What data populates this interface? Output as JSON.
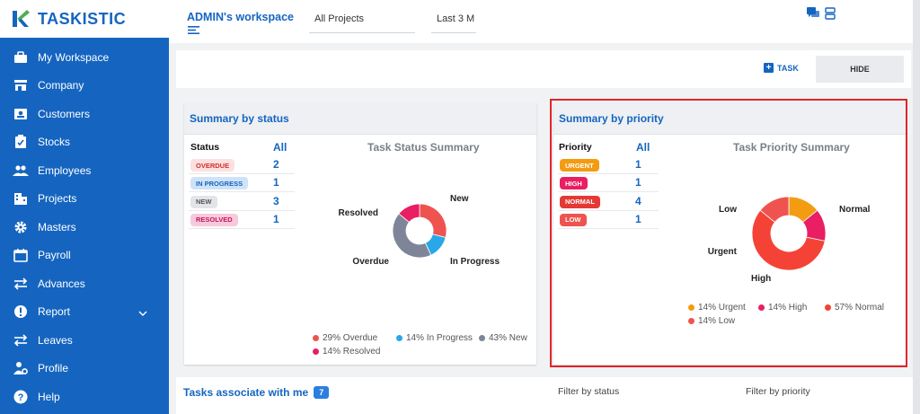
{
  "brand": {
    "name": "TASKISTIC",
    "color": "#1565c0"
  },
  "sidebar": {
    "items": [
      {
        "label": "My Workspace",
        "icon": "briefcase-icon"
      },
      {
        "label": "Company",
        "icon": "store-icon"
      },
      {
        "label": "Customers",
        "icon": "contact-card-icon"
      },
      {
        "label": "Stocks",
        "icon": "clipboard-check-icon"
      },
      {
        "label": "Employees",
        "icon": "people-icon"
      },
      {
        "label": "Projects",
        "icon": "building-icon"
      },
      {
        "label": "Masters",
        "icon": "gear-icon"
      },
      {
        "label": "Payroll",
        "icon": "calendar-icon"
      },
      {
        "label": "Advances",
        "icon": "swap-arrows-icon"
      },
      {
        "label": "Report",
        "icon": "alert-circle-icon"
      },
      {
        "label": "Leaves",
        "icon": "swap-arrows-icon"
      },
      {
        "label": "Profile",
        "icon": "user-gear-icon"
      },
      {
        "label": "Help",
        "icon": "help-circle-icon"
      }
    ]
  },
  "header": {
    "workspace_title": "ADMIN's workspace",
    "project_filter": "All Projects",
    "period_filter": "Last 3 M"
  },
  "actions": {
    "task_label": "TASK",
    "hide_label": "HIDE"
  },
  "status_summary": {
    "title": "Summary by status",
    "col_status": "Status",
    "col_all": "All",
    "rows": [
      {
        "label": "OVERDUE",
        "count": "2",
        "bg": "#fde0e0",
        "fg": "#d32f2f"
      },
      {
        "label": "IN PROGRESS",
        "count": "1",
        "bg": "#cfe3f8",
        "fg": "#1565c0"
      },
      {
        "label": "NEW",
        "count": "3",
        "bg": "#e2e4e8",
        "fg": "#555555"
      },
      {
        "label": "RESOLVED",
        "count": "1",
        "bg": "#f8c9dc",
        "fg": "#c2185b"
      }
    ],
    "chart_title": "Task Status Summary",
    "legend": [
      "29% Overdue",
      "14% In Progress",
      "43% New",
      "14% Resolved"
    ]
  },
  "priority_summary": {
    "title": "Summary by priority",
    "col_priority": "Priority",
    "col_all": "All",
    "rows": [
      {
        "label": "URGENT",
        "count": "1",
        "bg": "#f39c12",
        "fg": "#ffffff"
      },
      {
        "label": "HIGH",
        "count": "1",
        "bg": "#e91e63",
        "fg": "#ffffff"
      },
      {
        "label": "NORMAL",
        "count": "4",
        "bg": "#e53935",
        "fg": "#ffffff"
      },
      {
        "label": "LOW",
        "count": "1",
        "bg": "#ef5350",
        "fg": "#ffffff"
      }
    ],
    "chart_title": "Task Priority Summary",
    "legend": [
      "14% Urgent",
      "14% High",
      "57% Normal",
      "14% Low"
    ]
  },
  "chart_data": [
    {
      "type": "pie",
      "title": "Task Status Summary",
      "categories": [
        "Overdue",
        "In Progress",
        "New",
        "Resolved"
      ],
      "values": [
        29,
        14,
        43,
        14
      ],
      "colors": [
        "#ef5350",
        "#29a8e8",
        "#7f8599",
        "#e91e63"
      ]
    },
    {
      "type": "pie",
      "title": "Task Priority Summary",
      "categories": [
        "Urgent",
        "High",
        "Normal",
        "Low"
      ],
      "values": [
        14,
        14,
        57,
        14
      ],
      "colors": [
        "#f39c12",
        "#e91e63",
        "#f44336",
        "#ef5350"
      ]
    }
  ],
  "tasks_section": {
    "title": "Tasks associate with me",
    "count": "7",
    "filter_status": "Filter by status",
    "filter_priority": "Filter by priority"
  },
  "colors": {
    "highlight": "#e0242b",
    "sidebar": "#1565c0"
  }
}
